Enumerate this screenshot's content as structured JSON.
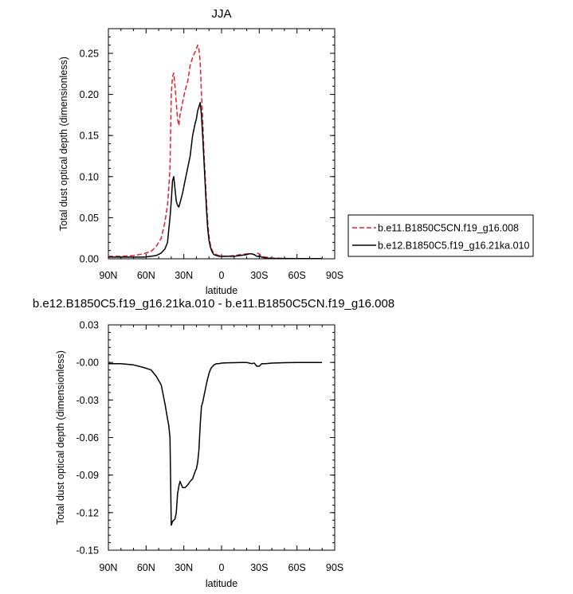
{
  "chart_data": [
    {
      "type": "line",
      "title": "JJA",
      "xlabel": "latitude",
      "ylabel": "Total dust optical depth (dimensionless)",
      "x_tick_labels": [
        "90N",
        "60N",
        "30N",
        "0",
        "30S",
        "60S",
        "90S"
      ],
      "x_ticks": [
        90,
        60,
        30,
        0,
        -30,
        -60,
        -90
      ],
      "xlim": [
        90,
        -90
      ],
      "ylim": [
        0,
        0.28
      ],
      "y_ticks": [
        0,
        0.05,
        0.1,
        0.15,
        0.2,
        0.25
      ],
      "y_tick_labels": [
        "0.00",
        "0.05",
        "0.10",
        "0.15",
        "0.20",
        "0.25"
      ],
      "legend_position": "right",
      "series": [
        {
          "name": "b.e11.B1850C5CN.f19_g16.008",
          "color": "#e8202a",
          "dash": "dashed",
          "x": [
            90,
            80,
            70,
            62,
            56,
            52,
            48,
            45,
            43,
            42,
            41,
            40,
            39,
            38,
            37,
            36,
            35,
            34,
            33,
            31,
            29,
            27,
            25,
            23,
            21,
            20,
            19,
            18,
            17,
            16,
            15,
            14,
            13,
            12,
            11,
            10,
            9,
            8,
            7,
            6,
            4,
            2,
            0,
            -5,
            -10,
            -15,
            -20,
            -22,
            -24,
            -26,
            -28,
            -30,
            -32,
            -35,
            -40,
            -50,
            -60,
            -70,
            -80
          ],
          "y": [
            0.003,
            0.003,
            0.004,
            0.006,
            0.009,
            0.015,
            0.025,
            0.045,
            0.065,
            0.085,
            0.11,
            0.2,
            0.222,
            0.226,
            0.21,
            0.19,
            0.17,
            0.162,
            0.175,
            0.19,
            0.205,
            0.215,
            0.235,
            0.245,
            0.252,
            0.255,
            0.26,
            0.255,
            0.24,
            0.2,
            0.17,
            0.13,
            0.1,
            0.07,
            0.045,
            0.028,
            0.018,
            0.012,
            0.009,
            0.007,
            0.005,
            0.004,
            0.003,
            0.003,
            0.004,
            0.005,
            0.006,
            0.007,
            0.006,
            0.005,
            0.007,
            0.006,
            0.003,
            0.002,
            0.001,
            0.0005,
            0.0003,
            0.0002,
            0.0002
          ]
        },
        {
          "name": "b.e12.B1850C5.f19_g16.21ka.010",
          "color": "#000000",
          "dash": "solid",
          "x": [
            90,
            80,
            70,
            62,
            56,
            52,
            48,
            45,
            43,
            42,
            41,
            40,
            39,
            38,
            37,
            36,
            35,
            34,
            33,
            31,
            29,
            27,
            25,
            23,
            21,
            20,
            19,
            18,
            17,
            16,
            15,
            14,
            13,
            12,
            11,
            10,
            9,
            8,
            7,
            6,
            4,
            2,
            0,
            -5,
            -10,
            -15,
            -20,
            -22,
            -24,
            -26,
            -28,
            -30,
            -32,
            -35,
            -40,
            -50,
            -60,
            -70,
            -80
          ],
          "y": [
            0.002,
            0.002,
            0.002,
            0.002,
            0.003,
            0.004,
            0.007,
            0.012,
            0.02,
            0.035,
            0.05,
            0.07,
            0.095,
            0.1,
            0.085,
            0.07,
            0.065,
            0.063,
            0.068,
            0.08,
            0.095,
            0.11,
            0.125,
            0.15,
            0.165,
            0.17,
            0.18,
            0.185,
            0.19,
            0.175,
            0.15,
            0.12,
            0.09,
            0.06,
            0.037,
            0.023,
            0.015,
            0.01,
            0.007,
            0.005,
            0.004,
            0.003,
            0.003,
            0.003,
            0.003,
            0.004,
            0.005,
            0.006,
            0.006,
            0.005,
            0.003,
            0.003,
            0.002,
            0.001,
            0.0005,
            0.0003,
            0.0002,
            0.0002,
            0.0002
          ]
        }
      ]
    },
    {
      "type": "line",
      "title": "b.e12.B1850C5.f19_g16.21ka.010 - b.e11.B1850C5CN.f19_g16.008",
      "xlabel": "latitude",
      "ylabel": "Total dust optical depth (dimensionless)",
      "x_tick_labels": [
        "90N",
        "60N",
        "30N",
        "0",
        "30S",
        "60S",
        "90S"
      ],
      "x_ticks": [
        90,
        60,
        30,
        0,
        -30,
        -60,
        -90
      ],
      "xlim": [
        90,
        -90
      ],
      "ylim": [
        -0.15,
        0.03
      ],
      "y_ticks": [
        0.03,
        0.0,
        -0.03,
        -0.06,
        -0.09,
        -0.12,
        -0.15
      ],
      "y_tick_labels": [
        "0.03",
        "-0.00",
        "-0.03",
        "-0.06",
        "-0.09",
        "-0.12",
        "-0.15"
      ],
      "series": [
        {
          "color": "#000000",
          "dash": "solid",
          "x": [
            90,
            80,
            70,
            62,
            56,
            52,
            48,
            45,
            43,
            42,
            41,
            40,
            39,
            38,
            37,
            36,
            35,
            34,
            33,
            31,
            29,
            27,
            25,
            23,
            21,
            20,
            19,
            18,
            17,
            16,
            15,
            14,
            13,
            12,
            11,
            10,
            9,
            8,
            7,
            6,
            4,
            2,
            0,
            -5,
            -10,
            -15,
            -20,
            -22,
            -24,
            -26,
            -28,
            -30,
            -32,
            -35,
            -40,
            -50,
            -60,
            -70,
            -80
          ],
          "y": [
            -0.001,
            -0.001,
            -0.002,
            -0.004,
            -0.006,
            -0.011,
            -0.018,
            -0.033,
            -0.045,
            -0.05,
            -0.06,
            -0.13,
            -0.127,
            -0.126,
            -0.125,
            -0.12,
            -0.105,
            -0.099,
            -0.095,
            -0.1,
            -0.1,
            -0.098,
            -0.095,
            -0.093,
            -0.087,
            -0.085,
            -0.08,
            -0.07,
            -0.05,
            -0.035,
            -0.032,
            -0.027,
            -0.022,
            -0.017,
            -0.013,
            -0.009,
            -0.006,
            -0.004,
            -0.003,
            -0.002,
            -0.001,
            -0.001,
            -0.0005,
            -0.0003,
            -0.0002,
            -0.0001,
            0.0,
            -0.0005,
            -0.001,
            -0.0005,
            -0.003,
            -0.003,
            -0.001,
            -0.001,
            -0.0005,
            -0.0002,
            -0.0001,
            -0.0001,
            -0.0001
          ]
        }
      ]
    }
  ]
}
